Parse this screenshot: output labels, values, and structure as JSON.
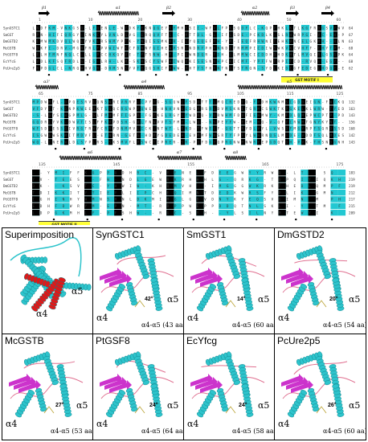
{
  "alignment": {
    "sequence_names": [
      "SynGSTC1",
      "SmGST",
      "DmGSTD2",
      "McGSTB",
      "PtGSTF8",
      "EcYfcG",
      "PcUre2p5"
    ],
    "blocks": [
      {
        "ss_labels": [
          "β1",
          "α1",
          "β2",
          "α2",
          "β3",
          "β4"
        ],
        "ruler": [
          "1",
          "10",
          "20",
          "30",
          "40",
          "50",
          "60"
        ],
        "end_numbers": [
          "64",
          "67",
          "63",
          "68",
          "64",
          "68",
          "62"
        ],
        "motif": "GST MOTIF I"
      },
      {
        "ss_labels": [
          "α3'",
          "α4",
          "α5"
        ],
        "ruler": [
          "65",
          "75",
          "85",
          "95",
          "105",
          "115",
          "125"
        ],
        "end_numbers": [
          "132",
          "163",
          "143",
          "156",
          "168",
          "142",
          "143"
        ],
        "motif": ""
      },
      {
        "ss_labels": [
          "α6",
          "α7",
          "α8"
        ],
        "ruler": [
          "135",
          "145",
          "155",
          "165",
          "175"
        ],
        "end_numbers": [
          "183",
          "219",
          "219",
          "212",
          "217",
          "215",
          "209"
        ],
        "motif": "GST MOTIF II"
      }
    ]
  },
  "panels": [
    {
      "title": "Superimposition",
      "alpha4": "α4",
      "alpha5": "α5",
      "angle": "",
      "loop": ""
    },
    {
      "title": "SynGSTC1",
      "alpha4": "α4",
      "alpha5": "α5",
      "angle": "42°",
      "loop": "α4-α5 (43 aa)"
    },
    {
      "title": "SmGST1",
      "alpha4": "α4",
      "alpha5": "α5",
      "angle": "14°",
      "loop": "α4-α5 (60 aa)"
    },
    {
      "title": "DmGSTD2",
      "alpha4": "α4",
      "alpha5": "α5",
      "angle": "20°",
      "loop": "α4-α5 (54 aa)"
    },
    {
      "title": "McGSTB",
      "alpha4": "α4",
      "alpha5": "α5",
      "angle": "27°",
      "loop": "α4-α5 (53 aa)"
    },
    {
      "title": "PtGSF8",
      "alpha4": "α4",
      "alpha5": "α5",
      "angle": "24°",
      "loop": "α4-α5 (64 aa)"
    },
    {
      "title": "EcYfcg",
      "alpha4": "α4",
      "alpha5": "α5",
      "angle": "24°",
      "loop": "α4-α5 (58 aa)"
    },
    {
      "title": "PcUre2p5",
      "alpha4": "α4",
      "alpha5": "α5",
      "angle": "26°",
      "loop": "α4-α5 (60 aa)"
    }
  ],
  "colors": {
    "conserved": "#22c8d2",
    "identical": "#000000",
    "motif_bar": "#ffff33",
    "helix": "#2ec4cc",
    "sheet": "#cc33cc",
    "loop": "#e07090",
    "highlight": "#e01818"
  }
}
